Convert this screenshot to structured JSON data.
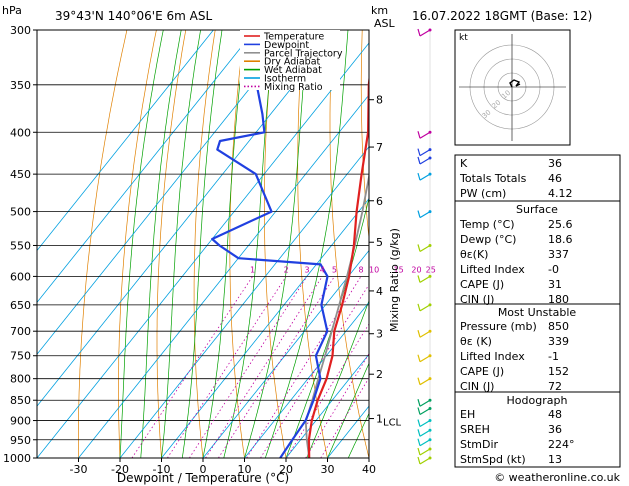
{
  "header": {
    "hpa_label": "hPa",
    "location": "39°43'N  140°06'E  6m  ASL",
    "km_label": "km",
    "asl_label": "ASL",
    "date": "16.07.2022  18GMT  (Base: 12)"
  },
  "legend": [
    {
      "label": "Temperature",
      "color": "#e02020",
      "style": "solid"
    },
    {
      "label": "Dewpoint",
      "color": "#2040e0",
      "style": "solid"
    },
    {
      "label": "Parcel Trajectory",
      "color": "#909090",
      "style": "solid"
    },
    {
      "label": "Dry Adiabat",
      "color": "#e08000",
      "style": "solid"
    },
    {
      "label": "Wet Adiabat",
      "color": "#00a000",
      "style": "solid"
    },
    {
      "label": "Isotherm",
      "color": "#00a0e0",
      "style": "solid"
    },
    {
      "label": "Mixing Ratio",
      "color": "#c000a0",
      "style": "dotted"
    }
  ],
  "chart_data": {
    "type": "line",
    "xlabel": "Dewpoint / Temperature (°C)",
    "ylabel_right": "Mixing Ratio (g/kg)",
    "pressure_ticks": [
      300,
      350,
      400,
      450,
      500,
      550,
      600,
      650,
      700,
      750,
      800,
      850,
      900,
      950,
      1000
    ],
    "temp_ticks": [
      -30,
      -20,
      -10,
      0,
      10,
      20,
      30,
      40
    ],
    "xlim": [
      -40,
      40
    ],
    "ylim": [
      1000,
      300
    ],
    "km_ticks": [
      {
        "label": "8",
        "p": 365
      },
      {
        "label": "7",
        "p": 417
      },
      {
        "label": "6",
        "p": 485
      },
      {
        "label": "5",
        "p": 545
      },
      {
        "label": "4",
        "p": 625
      },
      {
        "label": "3",
        "p": 705
      },
      {
        "label": "2",
        "p": 790
      },
      {
        "label": "1",
        "p": 895
      }
    ],
    "lcl_label": "LCL",
    "lcl_p": 902,
    "mixing_ratio_labels": [
      "1",
      "2",
      "3",
      "4",
      "5",
      "8",
      "10",
      "15",
      "20",
      "25"
    ],
    "isotherms": [
      -80,
      -70,
      -60,
      -50,
      -40,
      -30,
      -20,
      -10,
      0,
      10,
      20,
      30,
      40
    ],
    "series": [
      {
        "name": "Temperature",
        "points": [
          [
            1000,
            25.6
          ],
          [
            950,
            22.0
          ],
          [
            900,
            19.0
          ],
          [
            850,
            16.5
          ],
          [
            800,
            14.5
          ],
          [
            750,
            11.5
          ],
          [
            700,
            7.2
          ],
          [
            650,
            4.0
          ],
          [
            600,
            0.2
          ],
          [
            550,
            -4.6
          ],
          [
            500,
            -10.5
          ],
          [
            450,
            -16.5
          ],
          [
            400,
            -23.0
          ],
          [
            350,
            -32.0
          ],
          [
            300,
            -41.0
          ]
        ]
      },
      {
        "name": "Dewpoint",
        "points": [
          [
            1000,
            18.6
          ],
          [
            950,
            18.0
          ],
          [
            900,
            17.5
          ],
          [
            850,
            15.5
          ],
          [
            800,
            13.0
          ],
          [
            750,
            7.5
          ],
          [
            700,
            5.5
          ],
          [
            650,
            -1.0
          ],
          [
            600,
            -5.0
          ],
          [
            580,
            -9.0
          ],
          [
            570,
            -30.0
          ],
          [
            550,
            -37.0
          ],
          [
            540,
            -40.0
          ],
          [
            500,
            -31.0
          ],
          [
            450,
            -42.0
          ],
          [
            420,
            -56.0
          ],
          [
            410,
            -57.0
          ],
          [
            400,
            -48.0
          ],
          [
            380,
            -52.0
          ],
          [
            350,
            -59.0
          ],
          [
            320,
            -65.0
          ],
          [
            300,
            -72.0
          ]
        ]
      },
      {
        "name": "Parcel Trajectory",
        "points": [
          [
            1000,
            25.6
          ],
          [
            950,
            21.5
          ],
          [
            902,
            17.7
          ],
          [
            850,
            15.2
          ],
          [
            800,
            12.5
          ],
          [
            750,
            9.7
          ],
          [
            700,
            6.6
          ],
          [
            650,
            3.3
          ],
          [
            600,
            -0.3
          ],
          [
            550,
            -4.4
          ],
          [
            500,
            -9.1
          ],
          [
            450,
            -14.6
          ],
          [
            400,
            -21.1
          ],
          [
            350,
            -28.8
          ],
          [
            300,
            -38.0
          ]
        ]
      }
    ]
  },
  "indices": {
    "rows": [
      {
        "label": "K",
        "value": "36"
      },
      {
        "label": "Totals Totals",
        "value": "46"
      },
      {
        "label": "PW (cm)",
        "value": "4.12"
      }
    ]
  },
  "surface": {
    "title": "Surface",
    "rows": [
      {
        "label": "Temp (°C)",
        "value": "25.6"
      },
      {
        "label": "Dewp (°C)",
        "value": "18.6"
      },
      {
        "label": "θε(K)",
        "value": "337"
      },
      {
        "label": "Lifted Index",
        "value": "-0"
      },
      {
        "label": "CAPE (J)",
        "value": "31"
      },
      {
        "label": "CIN (J)",
        "value": "180"
      }
    ]
  },
  "most_unstable": {
    "title": "Most Unstable",
    "rows": [
      {
        "label": "Pressure (mb)",
        "value": "850"
      },
      {
        "label": "θε (K)",
        "value": "339"
      },
      {
        "label": "Lifted Index",
        "value": "-1"
      },
      {
        "label": "CAPE (J)",
        "value": "152"
      },
      {
        "label": "CIN (J)",
        "value": "72"
      }
    ]
  },
  "hodograph": {
    "title": "Hodograph",
    "rows": [
      {
        "label": "EH",
        "value": "48"
      },
      {
        "label": "SREH",
        "value": "36"
      },
      {
        "label": "StmDir",
        "value": "224°"
      },
      {
        "label": "StmSpd (kt)",
        "value": "13"
      }
    ],
    "kt_label": "kt",
    "ring_labels": [
      "10",
      "20",
      "30"
    ]
  },
  "footer": {
    "copyright": "© weatheronline.co.uk"
  }
}
